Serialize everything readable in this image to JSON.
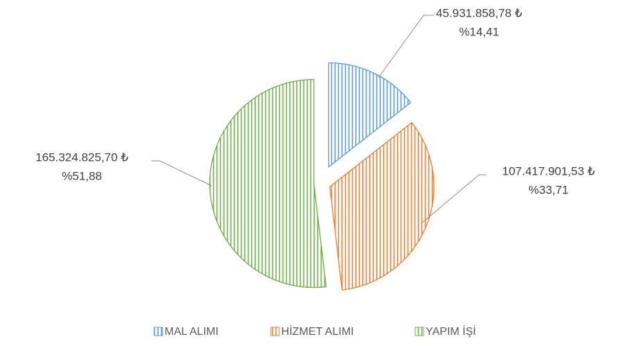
{
  "chart_data": {
    "type": "pie",
    "categories": [
      "MAL ALIMI",
      "HİZMET ALIMI",
      "YAPIM İŞİ"
    ],
    "values": [
      14.41,
      33.71,
      51.88
    ],
    "value_labels": [
      "%14,41",
      "%33,71",
      "%51,88"
    ],
    "amount_labels": [
      "45.931.858,78 ₺",
      "107.417.901,53 ₺",
      "165.324.825,70 ₺"
    ],
    "colors": [
      "#5b9bd5",
      "#ed7d31",
      "#70ad47"
    ],
    "legend": "bottom"
  }
}
